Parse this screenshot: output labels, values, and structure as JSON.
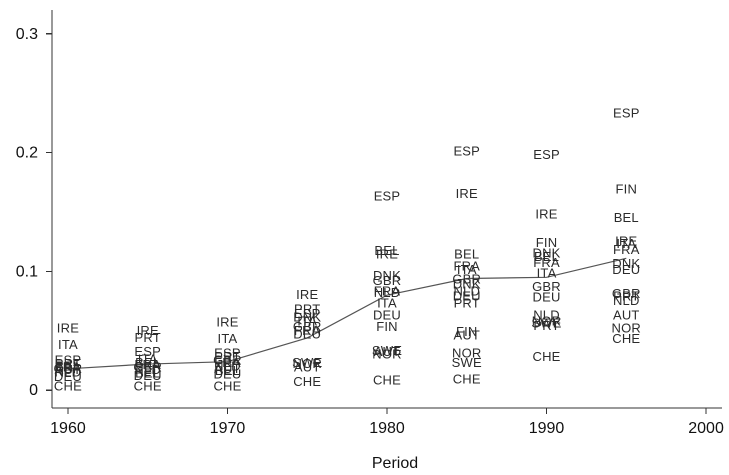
{
  "chart_data": {
    "type": "scatter",
    "title": "",
    "xlabel": "Period",
    "ylabel": "",
    "xlim": [
      1959,
      2001
    ],
    "ylim": [
      -0.015,
      0.32
    ],
    "xticks": [
      1960,
      1970,
      1980,
      1990,
      2000
    ],
    "yticks": [
      0,
      0.1,
      0.2,
      0.3
    ],
    "ytick_labels": [
      "0",
      "0.1",
      "0.2",
      "0.3"
    ],
    "grid": false,
    "points": [
      {
        "label": "IRE",
        "x": 1960,
        "y": 0.052
      },
      {
        "label": "ITA",
        "x": 1960,
        "y": 0.038
      },
      {
        "label": "ESP",
        "x": 1960,
        "y": 0.025
      },
      {
        "label": "PRT",
        "x": 1960,
        "y": 0.022
      },
      {
        "label": "BEL",
        "x": 1960,
        "y": 0.02
      },
      {
        "label": "FRA",
        "x": 1960,
        "y": 0.019
      },
      {
        "label": "GBR",
        "x": 1960,
        "y": 0.018
      },
      {
        "label": "AUT",
        "x": 1960,
        "y": 0.017
      },
      {
        "label": "NLD",
        "x": 1960,
        "y": 0.015
      },
      {
        "label": "DEU",
        "x": 1960,
        "y": 0.011
      },
      {
        "label": "CHE",
        "x": 1960,
        "y": 0.003
      },
      {
        "label": "IRE",
        "x": 1965,
        "y": 0.05
      },
      {
        "label": "PRT",
        "x": 1965,
        "y": 0.044
      },
      {
        "label": "ESP",
        "x": 1965,
        "y": 0.032
      },
      {
        "label": "ITA",
        "x": 1965,
        "y": 0.026
      },
      {
        "label": "BEL",
        "x": 1965,
        "y": 0.023
      },
      {
        "label": "FRA",
        "x": 1965,
        "y": 0.021
      },
      {
        "label": "GBR",
        "x": 1965,
        "y": 0.019
      },
      {
        "label": "NLD",
        "x": 1965,
        "y": 0.017
      },
      {
        "label": "BEL",
        "x": 1965,
        "y": 0.014
      },
      {
        "label": "DEU",
        "x": 1965,
        "y": 0.012
      },
      {
        "label": "CHE",
        "x": 1965,
        "y": 0.003
      },
      {
        "label": "IRE",
        "x": 1970,
        "y": 0.057
      },
      {
        "label": "ITA",
        "x": 1970,
        "y": 0.043
      },
      {
        "label": "ESP",
        "x": 1970,
        "y": 0.031
      },
      {
        "label": "PRT",
        "x": 1970,
        "y": 0.028
      },
      {
        "label": "GBR",
        "x": 1970,
        "y": 0.025
      },
      {
        "label": "FRA",
        "x": 1970,
        "y": 0.023
      },
      {
        "label": "NLD",
        "x": 1970,
        "y": 0.02
      },
      {
        "label": "AUT",
        "x": 1970,
        "y": 0.018
      },
      {
        "label": "BEL",
        "x": 1970,
        "y": 0.016
      },
      {
        "label": "DEU",
        "x": 1970,
        "y": 0.013
      },
      {
        "label": "CHE",
        "x": 1970,
        "y": 0.003
      },
      {
        "label": "IRE",
        "x": 1975,
        "y": 0.08
      },
      {
        "label": "PRT",
        "x": 1975,
        "y": 0.068
      },
      {
        "label": "ESP",
        "x": 1975,
        "y": 0.064
      },
      {
        "label": "DNK",
        "x": 1975,
        "y": 0.061
      },
      {
        "label": "ITA",
        "x": 1975,
        "y": 0.058
      },
      {
        "label": "GBR",
        "x": 1975,
        "y": 0.053
      },
      {
        "label": "FRA",
        "x": 1975,
        "y": 0.05
      },
      {
        "label": "DEU",
        "x": 1975,
        "y": 0.047
      },
      {
        "label": "SWE",
        "x": 1975,
        "y": 0.023
      },
      {
        "label": "NOR",
        "x": 1975,
        "y": 0.022
      },
      {
        "label": "AUT",
        "x": 1975,
        "y": 0.019
      },
      {
        "label": "CHE",
        "x": 1975,
        "y": 0.007
      },
      {
        "label": "ESP",
        "x": 1980,
        "y": 0.163
      },
      {
        "label": "BEL",
        "x": 1980,
        "y": 0.117
      },
      {
        "label": "IRE",
        "x": 1980,
        "y": 0.114
      },
      {
        "label": "DNK",
        "x": 1980,
        "y": 0.096
      },
      {
        "label": "GBR",
        "x": 1980,
        "y": 0.092
      },
      {
        "label": "FRA",
        "x": 1980,
        "y": 0.083
      },
      {
        "label": "NLD",
        "x": 1980,
        "y": 0.082
      },
      {
        "label": "ITA",
        "x": 1980,
        "y": 0.073
      },
      {
        "label": "DEU",
        "x": 1980,
        "y": 0.063
      },
      {
        "label": "FIN",
        "x": 1980,
        "y": 0.053
      },
      {
        "label": "SWE",
        "x": 1980,
        "y": 0.033
      },
      {
        "label": "AUT",
        "x": 1980,
        "y": 0.032
      },
      {
        "label": "NOR",
        "x": 1980,
        "y": 0.03
      },
      {
        "label": "CHE",
        "x": 1980,
        "y": 0.008
      },
      {
        "label": "ESP",
        "x": 1985,
        "y": 0.201
      },
      {
        "label": "IRE",
        "x": 1985,
        "y": 0.165
      },
      {
        "label": "BEL",
        "x": 1985,
        "y": 0.114
      },
      {
        "label": "FRA",
        "x": 1985,
        "y": 0.104
      },
      {
        "label": "ITA",
        "x": 1985,
        "y": 0.101
      },
      {
        "label": "GBR",
        "x": 1985,
        "y": 0.093
      },
      {
        "label": "DNK",
        "x": 1985,
        "y": 0.089
      },
      {
        "label": "NLD",
        "x": 1985,
        "y": 0.083
      },
      {
        "label": "DEU",
        "x": 1985,
        "y": 0.079
      },
      {
        "label": "PRT",
        "x": 1985,
        "y": 0.073
      },
      {
        "label": "FIN",
        "x": 1985,
        "y": 0.049
      },
      {
        "label": "AUT",
        "x": 1985,
        "y": 0.046
      },
      {
        "label": "NOR",
        "x": 1985,
        "y": 0.031
      },
      {
        "label": "SWE",
        "x": 1985,
        "y": 0.023
      },
      {
        "label": "CHE",
        "x": 1985,
        "y": 0.009
      },
      {
        "label": "ESP",
        "x": 1990,
        "y": 0.198
      },
      {
        "label": "IRE",
        "x": 1990,
        "y": 0.148
      },
      {
        "label": "FIN",
        "x": 1990,
        "y": 0.124
      },
      {
        "label": "DNK",
        "x": 1990,
        "y": 0.115
      },
      {
        "label": "BEL",
        "x": 1990,
        "y": 0.112
      },
      {
        "label": "FRA",
        "x": 1990,
        "y": 0.107
      },
      {
        "label": "ITA",
        "x": 1990,
        "y": 0.098
      },
      {
        "label": "GBR",
        "x": 1990,
        "y": 0.087
      },
      {
        "label": "DEU",
        "x": 1990,
        "y": 0.078
      },
      {
        "label": "NLD",
        "x": 1990,
        "y": 0.063
      },
      {
        "label": "NOR",
        "x": 1990,
        "y": 0.058
      },
      {
        "label": "SWE",
        "x": 1990,
        "y": 0.056
      },
      {
        "label": "PRT",
        "x": 1990,
        "y": 0.054
      },
      {
        "label": "CHE",
        "x": 1990,
        "y": 0.028
      },
      {
        "label": "ESP",
        "x": 1995,
        "y": 0.233
      },
      {
        "label": "FIN",
        "x": 1995,
        "y": 0.169
      },
      {
        "label": "BEL",
        "x": 1995,
        "y": 0.145
      },
      {
        "label": "IRE",
        "x": 1995,
        "y": 0.125
      },
      {
        "label": "ITA",
        "x": 1995,
        "y": 0.123
      },
      {
        "label": "FRA",
        "x": 1995,
        "y": 0.118
      },
      {
        "label": "DNK",
        "x": 1995,
        "y": 0.106
      },
      {
        "label": "DEU",
        "x": 1995,
        "y": 0.101
      },
      {
        "label": "GBR",
        "x": 1995,
        "y": 0.081
      },
      {
        "label": "PRT",
        "x": 1995,
        "y": 0.079
      },
      {
        "label": "NLD",
        "x": 1995,
        "y": 0.075
      },
      {
        "label": "AUT",
        "x": 1995,
        "y": 0.063
      },
      {
        "label": "NOR",
        "x": 1995,
        "y": 0.052
      },
      {
        "label": "CHE",
        "x": 1995,
        "y": 0.043
      }
    ],
    "series": [
      {
        "x": [
          1960,
          1965,
          1970,
          1975,
          1980,
          1985,
          1990,
          1995
        ],
        "y": [
          0.018,
          0.022,
          0.024,
          0.044,
          0.08,
          0.094,
          0.095,
          0.111
        ]
      }
    ]
  }
}
